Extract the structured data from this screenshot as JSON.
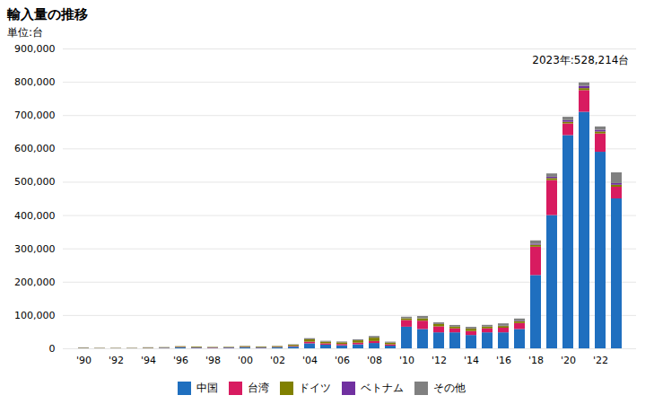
{
  "chart_data": {
    "type": "bar",
    "stacked": true,
    "title": "輸入量の推移",
    "ylabel": "単位:台",
    "annotations": [
      "2023年:528,214台"
    ],
    "categories": [
      "'90",
      null,
      "'92",
      null,
      "'94",
      null,
      "'96",
      null,
      "'98",
      null,
      "'00",
      null,
      "'02",
      null,
      "'04",
      null,
      "'06",
      null,
      "'08",
      null,
      "'10",
      null,
      "'12",
      null,
      "'14",
      null,
      "'16",
      null,
      "'18",
      null,
      "'20",
      null,
      "'22",
      null
    ],
    "series": [
      {
        "name": "中国",
        "color": "#1F6FBF",
        "values": [
          1000,
          500,
          500,
          500,
          1000,
          1500,
          3000,
          2000,
          1500,
          2000,
          3000,
          2000,
          3000,
          5000,
          15000,
          11000,
          9000,
          12000,
          16000,
          8000,
          65000,
          58000,
          48000,
          48000,
          40000,
          48000,
          48000,
          58000,
          220000,
          400000,
          640000,
          710000,
          590000,
          450000
        ]
      },
      {
        "name": "台湾",
        "color": "#D81B60",
        "values": [
          500,
          300,
          300,
          300,
          600,
          600,
          1200,
          1200,
          1000,
          800,
          1200,
          1000,
          1200,
          2000,
          5000,
          4000,
          4000,
          5000,
          6000,
          4000,
          20000,
          25000,
          18000,
          12000,
          12000,
          12000,
          14000,
          18000,
          85000,
          105000,
          35000,
          65000,
          55000,
          35000
        ]
      },
      {
        "name": "ドイツ",
        "color": "#808000",
        "values": [
          1000,
          800,
          800,
          800,
          1200,
          1200,
          2000,
          2000,
          1500,
          1500,
          2500,
          2000,
          2500,
          3500,
          7000,
          5000,
          5000,
          7000,
          10000,
          5000,
          5000,
          7000,
          7000,
          5000,
          7000,
          5000,
          5000,
          5000,
          6000,
          6000,
          5000,
          6000,
          6000,
          6000
        ]
      },
      {
        "name": "ベトナム",
        "color": "#7030A0",
        "values": [
          0,
          0,
          0,
          0,
          0,
          0,
          0,
          0,
          0,
          0,
          0,
          0,
          0,
          0,
          0,
          0,
          0,
          0,
          0,
          0,
          0,
          0,
          0,
          200,
          500,
          500,
          1000,
          1500,
          3000,
          4000,
          5000,
          7000,
          5000,
          5000
        ]
      },
      {
        "name": "その他",
        "color": "#808080",
        "values": [
          500,
          200,
          200,
          200,
          500,
          500,
          500,
          500,
          500,
          500,
          1000,
          800,
          1000,
          1500,
          3500,
          2500,
          2500,
          3000,
          5000,
          3000,
          5000,
          7000,
          5000,
          5000,
          5000,
          5000,
          7000,
          7000,
          10000,
          10000,
          10000,
          10000,
          10000,
          32214
        ]
      }
    ],
    "ylim": [
      0,
      900000
    ],
    "yticks": [
      0,
      {
        "value": 100000,
        "label": "100,000"
      },
      {
        "value": 200000,
        "label": "200,000"
      },
      {
        "value": 300000,
        "label": "300,000"
      },
      {
        "value": 400000,
        "label": "400,000"
      },
      {
        "value": 500000,
        "label": "500,000"
      },
      {
        "value": 600000,
        "label": "600,000"
      },
      {
        "value": 700000,
        "label": "700,000"
      },
      {
        "value": 800000,
        "label": "800,000"
      },
      {
        "value": 900000,
        "label": "900,000"
      }
    ],
    "grid": true,
    "legend": "bottom"
  }
}
